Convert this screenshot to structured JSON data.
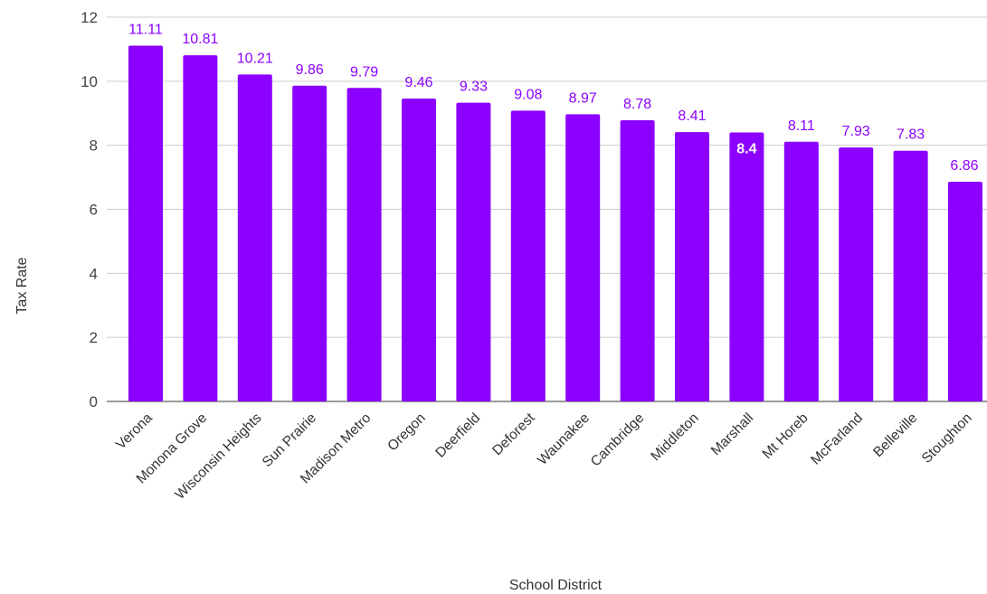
{
  "chart_data": {
    "type": "bar",
    "title": "",
    "xlabel": "School District",
    "ylabel": "Tax Rate",
    "ylim": [
      0,
      12
    ],
    "yticks": [
      0,
      2,
      4,
      6,
      8,
      10,
      12
    ],
    "grid": true,
    "legend": "none",
    "bar_color": "#8B00FF",
    "label_color": "#8B00FF",
    "categories": [
      "Verona",
      "Monona Grove",
      "Wisconsin Heights",
      "Sun Prairie",
      "Madison Metro",
      "Oregon",
      "Deerfield",
      "Deforest",
      "Waunakee",
      "Cambridge",
      "Middleton",
      "Marshall",
      "Mt Horeb",
      "McFarland",
      "Belleville",
      "Stoughton"
    ],
    "values": [
      11.11,
      10.81,
      10.21,
      9.86,
      9.79,
      9.46,
      9.33,
      9.08,
      8.97,
      8.78,
      8.41,
      8.4,
      8.11,
      7.93,
      7.83,
      6.86
    ]
  }
}
